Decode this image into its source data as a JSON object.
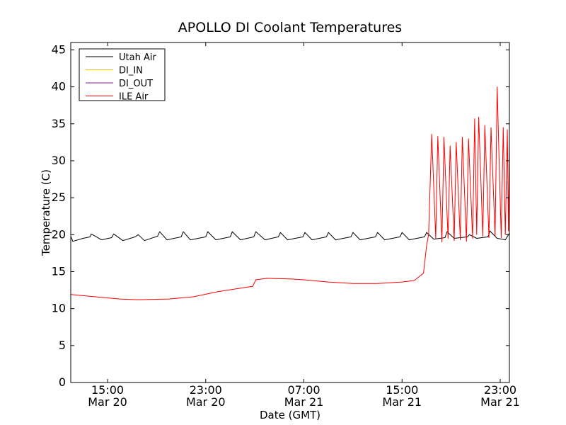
{
  "chart_data": {
    "type": "line",
    "title": "APOLLO DI Coolant Temperatures",
    "xlabel": "Date (GMT)",
    "ylabel": "Temperature (C)",
    "ylim": [
      0,
      46
    ],
    "xlim": [
      "2015-03-20T12:00",
      "2015-03-21T23:45"
    ],
    "yticks": [
      0,
      5,
      10,
      15,
      20,
      25,
      30,
      35,
      40,
      45
    ],
    "xticks": [
      {
        "t": "2015-03-20T15:00",
        "time": "15:00",
        "date": "Mar 20"
      },
      {
        "t": "2015-03-20T23:00",
        "time": "23:00",
        "date": "Mar 20"
      },
      {
        "t": "2015-03-21T07:00",
        "time": "07:00",
        "date": "Mar 21"
      },
      {
        "t": "2015-03-21T15:00",
        "time": "15:00",
        "date": "Mar 21"
      },
      {
        "t": "2015-03-21T23:00",
        "time": "23:00",
        "date": "Mar 21"
      }
    ],
    "legend_position": "top-left",
    "grid": false,
    "series": [
      {
        "name": "Utah Air",
        "color": "#000000",
        "points": [
          [
            "2015-03-20T12:00",
            19.8
          ],
          [
            "2015-03-20T12:10",
            19.1
          ],
          [
            "2015-03-20T13:00",
            19.5
          ],
          [
            "2015-03-20T13:35",
            19.7
          ],
          [
            "2015-03-20T13:40",
            20.1
          ],
          [
            "2015-03-20T14:00",
            19.8
          ],
          [
            "2015-03-20T14:30",
            19.3
          ],
          [
            "2015-03-20T15:20",
            19.6
          ],
          [
            "2015-03-20T15:30",
            20.1
          ],
          [
            "2015-03-20T16:15",
            19.2
          ],
          [
            "2015-03-20T17:15",
            19.7
          ],
          [
            "2015-03-20T17:30",
            20.0
          ],
          [
            "2015-03-20T18:00",
            19.2
          ],
          [
            "2015-03-20T19:05",
            19.8
          ],
          [
            "2015-03-20T19:15",
            20.4
          ],
          [
            "2015-03-20T19:50",
            19.3
          ],
          [
            "2015-03-20T21:00",
            19.7
          ],
          [
            "2015-03-20T21:10",
            20.4
          ],
          [
            "2015-03-20T21:45",
            19.3
          ],
          [
            "2015-03-20T23:00",
            19.7
          ],
          [
            "2015-03-20T23:10",
            20.4
          ],
          [
            "2015-03-20T23:50",
            19.3
          ],
          [
            "2015-03-21T01:00",
            19.7
          ],
          [
            "2015-03-21T01:10",
            20.4
          ],
          [
            "2015-03-21T01:50",
            19.3
          ],
          [
            "2015-03-21T02:55",
            19.7
          ],
          [
            "2015-03-21T03:05",
            20.4
          ],
          [
            "2015-03-21T03:50",
            19.3
          ],
          [
            "2015-03-21T04:55",
            19.7
          ],
          [
            "2015-03-21T05:05",
            20.3
          ],
          [
            "2015-03-21T05:40",
            19.3
          ],
          [
            "2015-03-21T06:55",
            19.7
          ],
          [
            "2015-03-21T07:05",
            20.3
          ],
          [
            "2015-03-21T07:40",
            19.3
          ],
          [
            "2015-03-21T08:50",
            19.7
          ],
          [
            "2015-03-21T09:00",
            20.3
          ],
          [
            "2015-03-21T09:35",
            19.3
          ],
          [
            "2015-03-21T10:50",
            19.7
          ],
          [
            "2015-03-21T11:00",
            20.3
          ],
          [
            "2015-03-21T11:35",
            19.3
          ],
          [
            "2015-03-21T12:50",
            19.7
          ],
          [
            "2015-03-21T13:00",
            20.3
          ],
          [
            "2015-03-21T13:35",
            19.3
          ],
          [
            "2015-03-21T14:50",
            19.7
          ],
          [
            "2015-03-21T15:00",
            20.3
          ],
          [
            "2015-03-21T15:35",
            19.3
          ],
          [
            "2015-03-21T16:50",
            19.7
          ],
          [
            "2015-03-21T17:00",
            20.3
          ],
          [
            "2015-03-21T17:35",
            19.4
          ],
          [
            "2015-03-21T18:30",
            19.6
          ],
          [
            "2015-03-21T18:40",
            20.4
          ],
          [
            "2015-03-21T19:15",
            19.5
          ],
          [
            "2015-03-21T20:20",
            19.7
          ],
          [
            "2015-03-21T20:30",
            20.0
          ],
          [
            "2015-03-21T21:05",
            19.5
          ],
          [
            "2015-03-21T22:00",
            19.7
          ],
          [
            "2015-03-21T22:10",
            20.5
          ],
          [
            "2015-03-21T22:45",
            19.5
          ],
          [
            "2015-03-21T23:10",
            19.4
          ],
          [
            "2015-03-21T23:25",
            19.3
          ],
          [
            "2015-03-21T23:45",
            20.2
          ]
        ]
      },
      {
        "name": "DI_IN",
        "color": "#f2c200",
        "points": []
      },
      {
        "name": "DI_OUT",
        "color": "#7b1f8f",
        "points": []
      },
      {
        "name": "ILE Air",
        "color": "#ff0000",
        "points": [
          [
            "2015-03-20T12:00",
            11.9
          ],
          [
            "2015-03-20T14:00",
            11.6
          ],
          [
            "2015-03-20T16:00",
            11.3
          ],
          [
            "2015-03-20T17:30",
            11.2
          ],
          [
            "2015-03-20T20:00",
            11.3
          ],
          [
            "2015-03-20T22:00",
            11.6
          ],
          [
            "2015-03-21T00:00",
            12.3
          ],
          [
            "2015-03-21T02:00",
            12.8
          ],
          [
            "2015-03-21T02:50",
            13.0
          ],
          [
            "2015-03-21T03:05",
            13.9
          ],
          [
            "2015-03-21T04:00",
            14.1
          ],
          [
            "2015-03-21T06:00",
            14.0
          ],
          [
            "2015-03-21T07:00",
            13.9
          ],
          [
            "2015-03-21T09:00",
            13.6
          ],
          [
            "2015-03-21T11:00",
            13.4
          ],
          [
            "2015-03-21T13:00",
            13.4
          ],
          [
            "2015-03-21T15:00",
            13.6
          ],
          [
            "2015-03-21T16:00",
            13.8
          ],
          [
            "2015-03-21T16:45",
            14.8
          ],
          [
            "2015-03-21T17:00",
            18.5
          ],
          [
            "2015-03-21T17:10",
            20.0
          ],
          [
            "2015-03-21T17:25",
            33.6
          ],
          [
            "2015-03-21T17:45",
            19.5
          ],
          [
            "2015-03-21T17:55",
            33.3
          ],
          [
            "2015-03-21T18:15",
            19.0
          ],
          [
            "2015-03-21T18:25",
            33.2
          ],
          [
            "2015-03-21T18:45",
            19.5
          ],
          [
            "2015-03-21T18:55",
            32.0
          ],
          [
            "2015-03-21T19:15",
            19.2
          ],
          [
            "2015-03-21T19:25",
            32.5
          ],
          [
            "2015-03-21T19:45",
            19.3
          ],
          [
            "2015-03-21T19:55",
            33.2
          ],
          [
            "2015-03-21T20:15",
            19.1
          ],
          [
            "2015-03-21T20:25",
            33.0
          ],
          [
            "2015-03-21T20:45",
            19.5
          ],
          [
            "2015-03-21T20:55",
            35.7
          ],
          [
            "2015-03-21T21:05",
            20.0
          ],
          [
            "2015-03-21T21:15",
            35.9
          ],
          [
            "2015-03-21T21:35",
            19.8
          ],
          [
            "2015-03-21T21:45",
            34.8
          ],
          [
            "2015-03-21T22:05",
            19.6
          ],
          [
            "2015-03-21T22:15",
            34.5
          ],
          [
            "2015-03-21T22:35",
            19.8
          ],
          [
            "2015-03-21T22:45",
            40.0
          ],
          [
            "2015-03-21T23:05",
            19.6
          ],
          [
            "2015-03-21T23:15",
            34.5
          ],
          [
            "2015-03-21T23:25",
            20.0
          ],
          [
            "2015-03-21T23:35",
            34.2
          ],
          [
            "2015-03-21T23:40",
            20.5
          ],
          [
            "2015-03-21T23:45",
            32.5
          ]
        ]
      }
    ]
  }
}
